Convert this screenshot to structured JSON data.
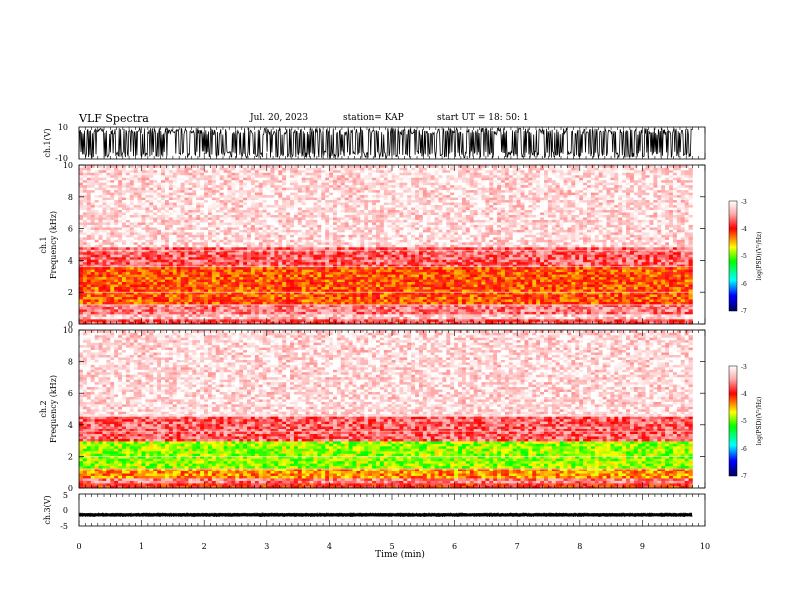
{
  "header": {
    "title": "VLF Spectra",
    "date": "Jul. 20, 2023",
    "station": "station= KAP",
    "start": "start UT = 18: 50: 1"
  },
  "colorbar": {
    "label": "log(PSD)(V²/Hz)",
    "ticks": [
      "-3",
      "-4",
      "-5",
      "-6",
      "-7"
    ],
    "colors": [
      "#ffffff",
      "#ff0000",
      "#ffff00",
      "#00ff00",
      "#00ffff",
      "#0000ff",
      "#000080"
    ]
  },
  "chart_data": [
    {
      "type": "line",
      "title": "",
      "ylabel": "ch.1(V)",
      "ylim": [
        -10,
        10
      ],
      "yticks": [
        "10",
        "-10"
      ],
      "xlim": [
        0,
        10
      ],
      "series": [
        {
          "values": "saturated broadband waveform spanning full range"
        }
      ]
    },
    {
      "type": "heatmap",
      "ylabel": "ch.1\nFrequency (kHz)",
      "ylim": [
        0,
        10
      ],
      "yticks": [
        "0",
        "2",
        "4",
        "6",
        "8",
        "10"
      ],
      "xlim": [
        0,
        10
      ],
      "data_extent_min": 9.8,
      "zlim": [
        -7,
        -3
      ],
      "bands": [
        {
          "f_low": 0.0,
          "f_high": 0.3,
          "log_psd": -3.8
        },
        {
          "f_low": 0.3,
          "f_high": 0.6,
          "log_psd": -3.3
        },
        {
          "f_low": 0.6,
          "f_high": 1.2,
          "log_psd": -3.6
        },
        {
          "f_low": 1.2,
          "f_high": 3.6,
          "log_psd": -4.2
        },
        {
          "f_low": 3.6,
          "f_high": 4.9,
          "log_psd": -3.7
        },
        {
          "f_low": 4.9,
          "f_high": 10.0,
          "log_psd": -3.2
        }
      ]
    },
    {
      "type": "heatmap",
      "ylabel": "ch.2\nFrequency (kHz)",
      "ylim": [
        0,
        10
      ],
      "yticks": [
        "0",
        "2",
        "4",
        "6",
        "8",
        "10"
      ],
      "xlim": [
        0,
        10
      ],
      "data_extent_min": 9.8,
      "zlim": [
        -7,
        -3
      ],
      "bands": [
        {
          "f_low": 0.0,
          "f_high": 0.3,
          "log_psd": -4.0
        },
        {
          "f_low": 0.3,
          "f_high": 0.7,
          "log_psd": -3.6
        },
        {
          "f_low": 0.7,
          "f_high": 1.3,
          "log_psd": -4.4
        },
        {
          "f_low": 1.3,
          "f_high": 3.0,
          "log_psd": -4.9
        },
        {
          "f_low": 3.0,
          "f_high": 4.5,
          "log_psd": -3.7
        },
        {
          "f_low": 4.5,
          "f_high": 10.0,
          "log_psd": -3.2
        }
      ]
    },
    {
      "type": "line",
      "ylabel": "ch.3(V)",
      "ylim": [
        -5,
        5
      ],
      "yticks": [
        "5",
        "0",
        "-5"
      ],
      "xlim": [
        0,
        10
      ],
      "xlabel": "Time (min)",
      "xticks": [
        "0",
        "1",
        "2",
        "3",
        "4",
        "5",
        "6",
        "7",
        "8",
        "9",
        "10"
      ],
      "series": [
        {
          "values": "narrow band oscillation around -1.5 V"
        }
      ]
    }
  ]
}
